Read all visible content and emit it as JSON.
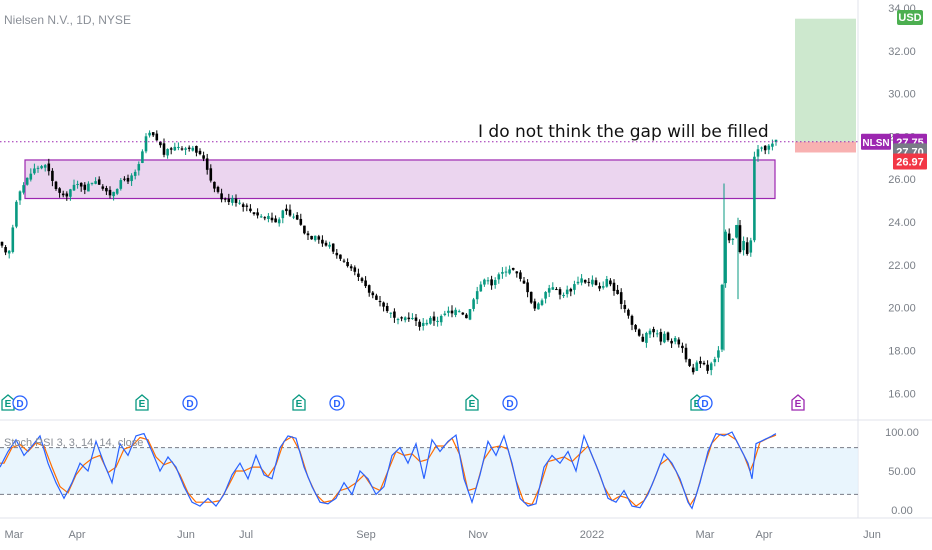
{
  "header": {
    "title": "Nielsen N.V., 1D, NYSE",
    "currency": "USD"
  },
  "annotation": "I do not think the gap will be filled",
  "price_tags": [
    {
      "label": "NLSN",
      "value": "27.75",
      "color": "#9c27b0"
    },
    {
      "value": "27.70",
      "color": "#787b86"
    },
    {
      "value": "26.97",
      "color": "#f23645"
    }
  ],
  "y_axis_labels": [
    "34.00",
    "32.00",
    "30.00",
    "28.00",
    "26.00",
    "24.00",
    "22.00",
    "20.00",
    "18.00",
    "16.00"
  ],
  "x_axis_labels": [
    "Mar",
    "Apr",
    "Jun",
    "Jul",
    "Sep",
    "Nov",
    "2022",
    "Mar",
    "Apr",
    "Jun"
  ],
  "stoch": {
    "title": "Stoch RSI 3, 3, 14, 14, close",
    "axis_labels": [
      "100.00",
      "50.00",
      "0.00"
    ],
    "upper_band": 80,
    "lower_band": 20
  },
  "events": [
    {
      "type": "E",
      "color": "#089981"
    },
    {
      "type": "D",
      "color": "#2962ff"
    },
    {
      "type": "E",
      "color": "#089981"
    },
    {
      "type": "D",
      "color": "#2962ff"
    },
    {
      "type": "E",
      "color": "#089981"
    },
    {
      "type": "D",
      "color": "#2962ff"
    },
    {
      "type": "E",
      "color": "#089981"
    },
    {
      "type": "D",
      "color": "#2962ff"
    },
    {
      "type": "E",
      "color": "#089981"
    },
    {
      "type": "D",
      "color": "#2962ff"
    },
    {
      "type": "E",
      "color": "#9c27b0"
    }
  ],
  "chart_data": {
    "type": "candlestick",
    "ylim": [
      15.5,
      34.0
    ],
    "colors": {
      "up": "#089981",
      "down": "#000000",
      "zone": "#9c27b0",
      "target": "#4caf50",
      "stop": "#f23645"
    },
    "zone": {
      "top": 26.9,
      "bottom": 25.1
    },
    "target_box": {
      "top": 33.5,
      "bottom": 27.75
    },
    "stop_box": {
      "top": 27.75,
      "bottom": 27.25
    },
    "dotted_level": 27.75,
    "close_path": [
      [
        0,
        23.0
      ],
      [
        4,
        22.6
      ],
      [
        8,
        22.3
      ],
      [
        12,
        23.4
      ],
      [
        15,
        24.8
      ],
      [
        19,
        25.5
      ],
      [
        23,
        25.7
      ],
      [
        27,
        26.0
      ],
      [
        31,
        26.3
      ],
      [
        35,
        26.5
      ],
      [
        40,
        26.6
      ],
      [
        44,
        26.7
      ],
      [
        48,
        26.4
      ],
      [
        52,
        25.9
      ],
      [
        56,
        25.6
      ],
      [
        60,
        25.3
      ],
      [
        64,
        25.1
      ],
      [
        68,
        25.4
      ],
      [
        72,
        25.6
      ],
      [
        76,
        25.7
      ],
      [
        80,
        25.8
      ],
      [
        84,
        25.6
      ],
      [
        88,
        25.7
      ],
      [
        92,
        25.9
      ],
      [
        96,
        26.0
      ],
      [
        100,
        25.8
      ],
      [
        104,
        25.5
      ],
      [
        108,
        25.2
      ],
      [
        112,
        25.4
      ],
      [
        116,
        25.6
      ],
      [
        120,
        25.8
      ],
      [
        124,
        26.0
      ],
      [
        128,
        26.0
      ],
      [
        132,
        26.1
      ],
      [
        136,
        26.3
      ],
      [
        140,
        26.8
      ],
      [
        144,
        27.6
      ],
      [
        148,
        28.2
      ],
      [
        152,
        28.0
      ],
      [
        156,
        27.9
      ],
      [
        160,
        27.6
      ],
      [
        164,
        27.2
      ],
      [
        168,
        27.3
      ],
      [
        172,
        27.5
      ],
      [
        176,
        27.5
      ],
      [
        180,
        27.6
      ],
      [
        184,
        27.4
      ],
      [
        188,
        27.6
      ],
      [
        192,
        27.4
      ],
      [
        196,
        27.3
      ],
      [
        200,
        27.1
      ],
      [
        204,
        27.0
      ],
      [
        208,
        26.4
      ],
      [
        212,
        25.8
      ],
      [
        216,
        25.6
      ],
      [
        220,
        25.2
      ],
      [
        224,
        25.0
      ],
      [
        228,
        25.0
      ],
      [
        232,
        25.2
      ],
      [
        236,
        25.0
      ],
      [
        240,
        24.9
      ],
      [
        244,
        24.8
      ],
      [
        248,
        24.6
      ],
      [
        252,
        24.5
      ],
      [
        256,
        24.4
      ],
      [
        260,
        24.3
      ],
      [
        264,
        24.2
      ],
      [
        268,
        24.3
      ],
      [
        272,
        24.1
      ],
      [
        276,
        24.0
      ],
      [
        280,
        24.3
      ],
      [
        284,
        24.5
      ],
      [
        288,
        24.4
      ],
      [
        292,
        24.2
      ],
      [
        296,
        24.3
      ],
      [
        300,
        23.9
      ],
      [
        304,
        23.6
      ],
      [
        308,
        23.4
      ],
      [
        312,
        23.3
      ],
      [
        316,
        23.5
      ],
      [
        320,
        23.2
      ],
      [
        324,
        22.9
      ],
      [
        328,
        23.0
      ],
      [
        332,
        22.7
      ],
      [
        336,
        22.5
      ],
      [
        340,
        22.4
      ],
      [
        344,
        22.1
      ],
      [
        348,
        21.8
      ],
      [
        352,
        21.7
      ],
      [
        356,
        21.5
      ],
      [
        360,
        21.3
      ],
      [
        364,
        21.0
      ],
      [
        368,
        20.8
      ],
      [
        372,
        20.6
      ],
      [
        376,
        20.5
      ],
      [
        380,
        20.3
      ],
      [
        384,
        20.0
      ],
      [
        388,
        19.9
      ],
      [
        392,
        19.6
      ],
      [
        396,
        19.4
      ],
      [
        400,
        19.3
      ],
      [
        404,
        19.5
      ],
      [
        408,
        19.6
      ],
      [
        412,
        19.5
      ],
      [
        416,
        19.3
      ],
      [
        420,
        19.2
      ],
      [
        424,
        19.3
      ],
      [
        428,
        19.4
      ],
      [
        432,
        19.5
      ],
      [
        436,
        19.4
      ],
      [
        440,
        19.5
      ],
      [
        444,
        19.7
      ],
      [
        448,
        19.8
      ],
      [
        452,
        19.7
      ],
      [
        456,
        19.8
      ],
      [
        460,
        19.9
      ],
      [
        464,
        19.7
      ],
      [
        468,
        19.5
      ],
      [
        472,
        20.3
      ],
      [
        476,
        20.8
      ],
      [
        480,
        21.1
      ],
      [
        484,
        21.2
      ],
      [
        488,
        21.4
      ],
      [
        492,
        21.1
      ],
      [
        496,
        21.4
      ],
      [
        500,
        21.5
      ],
      [
        504,
        21.7
      ],
      [
        508,
        21.9
      ],
      [
        512,
        21.8
      ],
      [
        516,
        21.6
      ],
      [
        520,
        21.3
      ],
      [
        524,
        21.1
      ],
      [
        528,
        20.8
      ],
      [
        532,
        20.2
      ],
      [
        536,
        19.9
      ],
      [
        540,
        20.3
      ],
      [
        544,
        20.6
      ],
      [
        548,
        20.9
      ],
      [
        552,
        21.1
      ],
      [
        556,
        20.8
      ],
      [
        560,
        20.6
      ],
      [
        564,
        20.7
      ],
      [
        568,
        20.8
      ],
      [
        572,
        20.9
      ],
      [
        576,
        21.2
      ],
      [
        580,
        21.4
      ],
      [
        584,
        21.3
      ],
      [
        588,
        21.1
      ],
      [
        592,
        21.3
      ],
      [
        596,
        21.0
      ],
      [
        600,
        20.8
      ],
      [
        604,
        21.2
      ],
      [
        608,
        21.3
      ],
      [
        612,
        21.0
      ],
      [
        616,
        20.6
      ],
      [
        620,
        20.4
      ],
      [
        624,
        20.0
      ],
      [
        628,
        19.8
      ],
      [
        632,
        19.2
      ],
      [
        636,
        18.9
      ],
      [
        640,
        18.6
      ],
      [
        644,
        18.4
      ],
      [
        648,
        18.9
      ],
      [
        652,
        19.0
      ],
      [
        656,
        18.8
      ],
      [
        660,
        18.5
      ],
      [
        664,
        18.7
      ],
      [
        668,
        18.6
      ],
      [
        672,
        18.4
      ],
      [
        676,
        18.5
      ],
      [
        680,
        18.3
      ],
      [
        684,
        18.0
      ],
      [
        688,
        17.4
      ],
      [
        692,
        16.8
      ],
      [
        696,
        17.3
      ],
      [
        700,
        17.5
      ],
      [
        704,
        17.4
      ],
      [
        708,
        17.1
      ],
      [
        712,
        17.6
      ],
      [
        716,
        17.7
      ],
      [
        720,
        18.2
      ],
      [
        722,
        21.0
      ],
      [
        724,
        22.8
      ],
      [
        726,
        23.6
      ],
      [
        728,
        23.3
      ],
      [
        730,
        23.0
      ],
      [
        732,
        22.6
      ],
      [
        734,
        24.0
      ],
      [
        736,
        24.3
      ],
      [
        738,
        22.5
      ],
      [
        740,
        22.7
      ],
      [
        742,
        23.4
      ],
      [
        744,
        23.0
      ],
      [
        746,
        22.6
      ],
      [
        748,
        22.4
      ],
      [
        750,
        22.1
      ],
      [
        754,
        27.1
      ],
      [
        757,
        27.3
      ],
      [
        760,
        27.3
      ],
      [
        764,
        27.45
      ],
      [
        768,
        27.5
      ],
      [
        772,
        27.6
      ],
      [
        776,
        27.75
      ]
    ],
    "stoch_k_path": [
      [
        0,
        55
      ],
      [
        8,
        75
      ],
      [
        16,
        90
      ],
      [
        24,
        70
      ],
      [
        32,
        82
      ],
      [
        40,
        95
      ],
      [
        48,
        60
      ],
      [
        56,
        35
      ],
      [
        64,
        15
      ],
      [
        72,
        35
      ],
      [
        80,
        60
      ],
      [
        88,
        50
      ],
      [
        96,
        88
      ],
      [
        104,
        60
      ],
      [
        112,
        35
      ],
      [
        120,
        85
      ],
      [
        128,
        70
      ],
      [
        136,
        95
      ],
      [
        144,
        98
      ],
      [
        152,
        75
      ],
      [
        160,
        50
      ],
      [
        168,
        68
      ],
      [
        176,
        55
      ],
      [
        184,
        30
      ],
      [
        192,
        10
      ],
      [
        200,
        5
      ],
      [
        208,
        15
      ],
      [
        216,
        5
      ],
      [
        224,
        20
      ],
      [
        232,
        45
      ],
      [
        240,
        60
      ],
      [
        248,
        40
      ],
      [
        256,
        70
      ],
      [
        264,
        45
      ],
      [
        272,
        40
      ],
      [
        280,
        80
      ],
      [
        288,
        95
      ],
      [
        296,
        92
      ],
      [
        304,
        55
      ],
      [
        312,
        30
      ],
      [
        320,
        10
      ],
      [
        328,
        8
      ],
      [
        336,
        15
      ],
      [
        344,
        35
      ],
      [
        352,
        20
      ],
      [
        360,
        50
      ],
      [
        368,
        40
      ],
      [
        376,
        20
      ],
      [
        384,
        30
      ],
      [
        392,
        70
      ],
      [
        400,
        80
      ],
      [
        408,
        60
      ],
      [
        416,
        85
      ],
      [
        424,
        40
      ],
      [
        432,
        90
      ],
      [
        440,
        75
      ],
      [
        448,
        88
      ],
      [
        456,
        96
      ],
      [
        464,
        40
      ],
      [
        472,
        10
      ],
      [
        480,
        45
      ],
      [
        488,
        88
      ],
      [
        496,
        70
      ],
      [
        504,
        95
      ],
      [
        512,
        60
      ],
      [
        520,
        15
      ],
      [
        528,
        5
      ],
      [
        536,
        8
      ],
      [
        544,
        55
      ],
      [
        552,
        70
      ],
      [
        560,
        60
      ],
      [
        568,
        75
      ],
      [
        576,
        50
      ],
      [
        584,
        95
      ],
      [
        592,
        70
      ],
      [
        600,
        45
      ],
      [
        608,
        15
      ],
      [
        616,
        10
      ],
      [
        624,
        25
      ],
      [
        632,
        5
      ],
      [
        640,
        3
      ],
      [
        648,
        20
      ],
      [
        656,
        45
      ],
      [
        664,
        72
      ],
      [
        672,
        60
      ],
      [
        680,
        40
      ],
      [
        688,
        10
      ],
      [
        692,
        2
      ],
      [
        700,
        35
      ],
      [
        708,
        75
      ],
      [
        716,
        98
      ],
      [
        724,
        95
      ],
      [
        732,
        100
      ],
      [
        740,
        80
      ],
      [
        748,
        60
      ],
      [
        752,
        40
      ],
      [
        756,
        85
      ],
      [
        764,
        90
      ],
      [
        772,
        95
      ],
      [
        776,
        98
      ]
    ],
    "stoch_d_path": [
      [
        4,
        60
      ],
      [
        12,
        80
      ],
      [
        20,
        84
      ],
      [
        28,
        75
      ],
      [
        36,
        86
      ],
      [
        44,
        82
      ],
      [
        52,
        55
      ],
      [
        60,
        30
      ],
      [
        68,
        22
      ],
      [
        76,
        45
      ],
      [
        84,
        58
      ],
      [
        92,
        66
      ],
      [
        100,
        70
      ],
      [
        108,
        48
      ],
      [
        116,
        55
      ],
      [
        124,
        78
      ],
      [
        132,
        82
      ],
      [
        140,
        93
      ],
      [
        148,
        90
      ],
      [
        156,
        68
      ],
      [
        164,
        58
      ],
      [
        172,
        62
      ],
      [
        180,
        45
      ],
      [
        188,
        22
      ],
      [
        196,
        10
      ],
      [
        204,
        10
      ],
      [
        212,
        10
      ],
      [
        220,
        12
      ],
      [
        228,
        30
      ],
      [
        236,
        50
      ],
      [
        244,
        50
      ],
      [
        252,
        55
      ],
      [
        260,
        55
      ],
      [
        268,
        43
      ],
      [
        276,
        58
      ],
      [
        284,
        88
      ],
      [
        292,
        94
      ],
      [
        300,
        75
      ],
      [
        308,
        42
      ],
      [
        316,
        20
      ],
      [
        324,
        10
      ],
      [
        332,
        12
      ],
      [
        340,
        25
      ],
      [
        348,
        28
      ],
      [
        356,
        35
      ],
      [
        364,
        45
      ],
      [
        372,
        30
      ],
      [
        380,
        25
      ],
      [
        388,
        50
      ],
      [
        396,
        75
      ],
      [
        404,
        70
      ],
      [
        412,
        72
      ],
      [
        420,
        62
      ],
      [
        428,
        65
      ],
      [
        436,
        82
      ],
      [
        444,
        82
      ],
      [
        452,
        92
      ],
      [
        460,
        70
      ],
      [
        468,
        25
      ],
      [
        476,
        28
      ],
      [
        484,
        65
      ],
      [
        492,
        80
      ],
      [
        500,
        82
      ],
      [
        508,
        78
      ],
      [
        516,
        38
      ],
      [
        524,
        10
      ],
      [
        532,
        7
      ],
      [
        540,
        30
      ],
      [
        548,
        62
      ],
      [
        556,
        65
      ],
      [
        564,
        68
      ],
      [
        572,
        62
      ],
      [
        580,
        72
      ],
      [
        588,
        82
      ],
      [
        596,
        58
      ],
      [
        604,
        30
      ],
      [
        612,
        12
      ],
      [
        620,
        18
      ],
      [
        628,
        15
      ],
      [
        636,
        5
      ],
      [
        644,
        12
      ],
      [
        652,
        32
      ],
      [
        660,
        58
      ],
      [
        668,
        66
      ],
      [
        676,
        50
      ],
      [
        684,
        25
      ],
      [
        690,
        6
      ],
      [
        696,
        18
      ],
      [
        704,
        55
      ],
      [
        712,
        86
      ],
      [
        720,
        97
      ],
      [
        728,
        97
      ],
      [
        736,
        90
      ],
      [
        744,
        70
      ],
      [
        750,
        50
      ],
      [
        754,
        62
      ],
      [
        760,
        87
      ],
      [
        768,
        92
      ],
      [
        776,
        96
      ]
    ]
  }
}
